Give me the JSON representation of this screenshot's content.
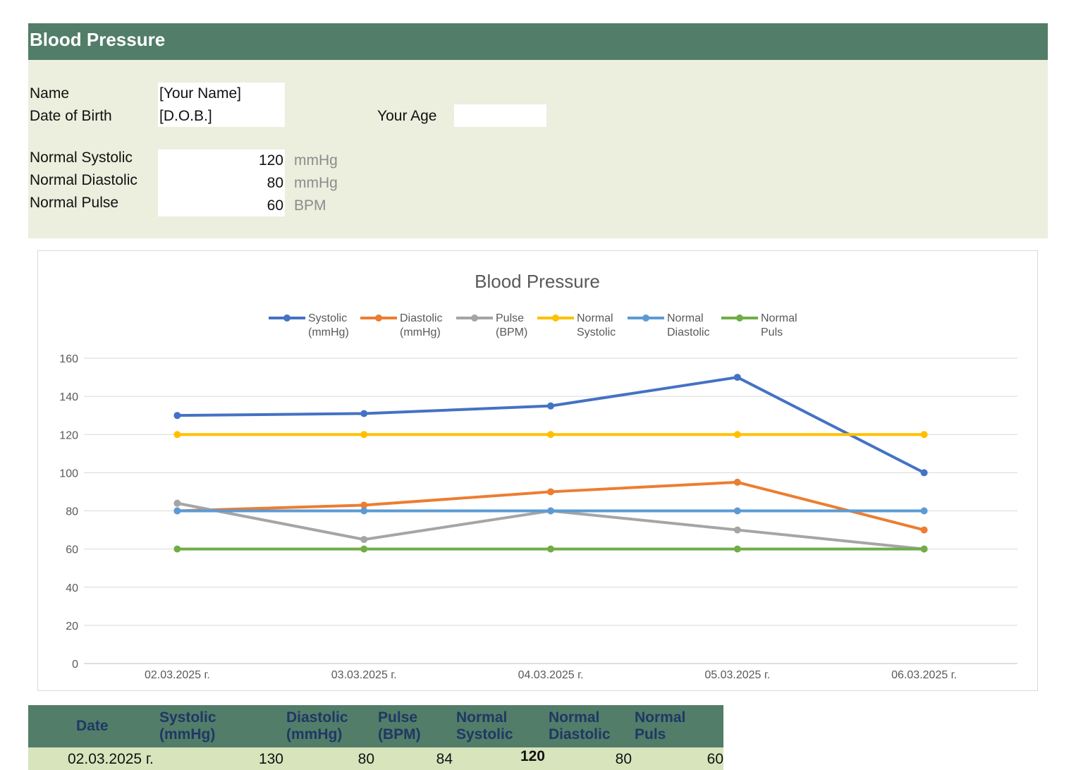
{
  "header": {
    "title": "Blood Pressure"
  },
  "info": {
    "name_label": "Name",
    "name_value": "[Your Name]",
    "dob_label": "Date of Birth",
    "dob_value": "[D.O.B.]",
    "age_label": "Your Age",
    "age_value": "",
    "normal_systolic_label": "Normal Systolic",
    "normal_systolic_value": "120",
    "normal_systolic_unit": "mmHg",
    "normal_diastolic_label": "Normal Diastolic",
    "normal_diastolic_value": "80",
    "normal_diastolic_unit": "mmHg",
    "normal_pulse_label": "Normal Pulse",
    "normal_pulse_value": "60",
    "normal_pulse_unit": "BPM"
  },
  "chart_data": {
    "type": "line",
    "title": "Blood Pressure",
    "categories": [
      "02.03.2025 г.",
      "03.03.2025 г.",
      "04.03.2025 г.",
      "05.03.2025 г.",
      "06.03.2025 г."
    ],
    "ylim": [
      0,
      160
    ],
    "yticks": [
      0,
      20,
      40,
      60,
      80,
      100,
      120,
      140,
      160
    ],
    "grid": true,
    "legend_position": "top",
    "series": [
      {
        "name": "Systolic (mmHg)",
        "legend_lines": [
          "Systolic",
          "(mmHg)"
        ],
        "color": "#4472c4",
        "values": [
          130,
          131,
          135,
          150,
          100
        ]
      },
      {
        "name": "Diastolic (mmHg)",
        "legend_lines": [
          "Diastolic",
          "(mmHg)"
        ],
        "color": "#ed7d31",
        "values": [
          80,
          83,
          90,
          95,
          70
        ]
      },
      {
        "name": "Pulse (BPM)",
        "legend_lines": [
          "Pulse",
          "(BPM)"
        ],
        "color": "#a5a5a5",
        "values": [
          84,
          65,
          80,
          70,
          60
        ]
      },
      {
        "name": "Normal Systolic",
        "legend_lines": [
          "Normal",
          "Systolic"
        ],
        "color": "#ffc000",
        "values": [
          120,
          120,
          120,
          120,
          120
        ]
      },
      {
        "name": "Normal Diastolic",
        "legend_lines": [
          "Normal",
          "Diastolic"
        ],
        "color": "#5b9bd5",
        "values": [
          80,
          80,
          80,
          80,
          80
        ]
      },
      {
        "name": "Normal Puls",
        "legend_lines": [
          "Normal",
          "Puls"
        ],
        "color": "#70ad47",
        "values": [
          60,
          60,
          60,
          60,
          60
        ]
      }
    ]
  },
  "table": {
    "headers": {
      "date": "Date",
      "systolic_1": "Systolic",
      "systolic_2": "(mmHg)",
      "diastolic_1": "Diastolic",
      "diastolic_2": "(mmHg)",
      "pulse_1": "Pulse",
      "pulse_2": "(BPM)",
      "nsys_1": "Normal",
      "nsys_2": "Systolic",
      "ndia_1": "Normal",
      "ndia_2": "Diastolic",
      "npul_1": "Normal",
      "npul_2": "Puls"
    },
    "rows": [
      {
        "date": "02.03.2025 г.",
        "systolic": "130",
        "diastolic": "80",
        "pulse": "84",
        "normal_systolic": "120",
        "normal_diastolic": "80",
        "normal_pulse": "60"
      }
    ]
  }
}
